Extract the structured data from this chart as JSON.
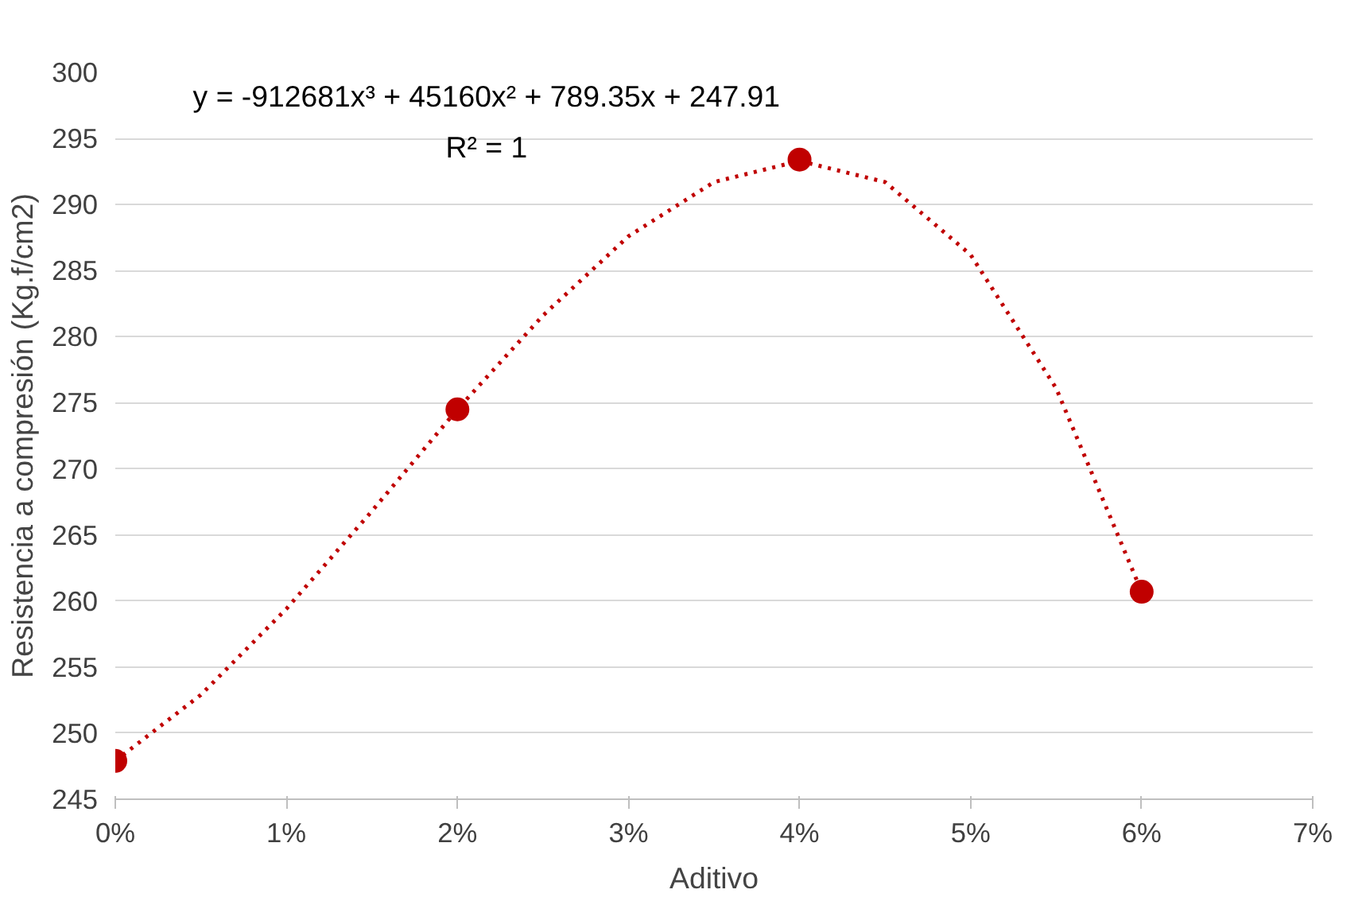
{
  "chart_data": {
    "type": "scatter",
    "xlabel": "Aditivo",
    "ylabel": "Resistencia a compresión (Kg.f/cm2)",
    "annotations": [
      "y = -912681x³ + 45160x² + 789.35x + 247.91",
      "R² = 1"
    ],
    "xlim": [
      0,
      0.07
    ],
    "xticks": [
      {
        "value": 0,
        "label": "0%"
      },
      {
        "value": 0.01,
        "label": "1%"
      },
      {
        "value": 0.02,
        "label": "2%"
      },
      {
        "value": 0.03,
        "label": "3%"
      },
      {
        "value": 0.04,
        "label": "4%"
      },
      {
        "value": 0.05,
        "label": "5%"
      },
      {
        "value": 0.06,
        "label": "6%"
      },
      {
        "value": 0.07,
        "label": "7%"
      }
    ],
    "ylim": [
      245,
      300
    ],
    "yticks": [
      245,
      250,
      255,
      260,
      265,
      270,
      275,
      280,
      285,
      290,
      295,
      300
    ],
    "grid": "y",
    "series": [
      {
        "color": "#c00000",
        "marker": "circle",
        "x": [
          0,
          0.02,
          0.04,
          0.06
        ],
        "values": [
          247.9,
          274.5,
          293.4,
          260.7
        ]
      },
      {
        "type": "line",
        "color": "#c00000",
        "marker": "none",
        "line_style": "dotted",
        "x": [
          0,
          0.005,
          0.01,
          0.015,
          0.02,
          0.025,
          0.03,
          0.035,
          0.04,
          0.045,
          0.05,
          0.055,
          0.06
        ],
        "values": [
          247.9,
          252.9,
          259.4,
          266.8,
          274.5,
          281.6,
          287.6,
          291.7,
          293.3,
          291.7,
          286.2,
          276.1,
          260.7
        ]
      }
    ]
  }
}
